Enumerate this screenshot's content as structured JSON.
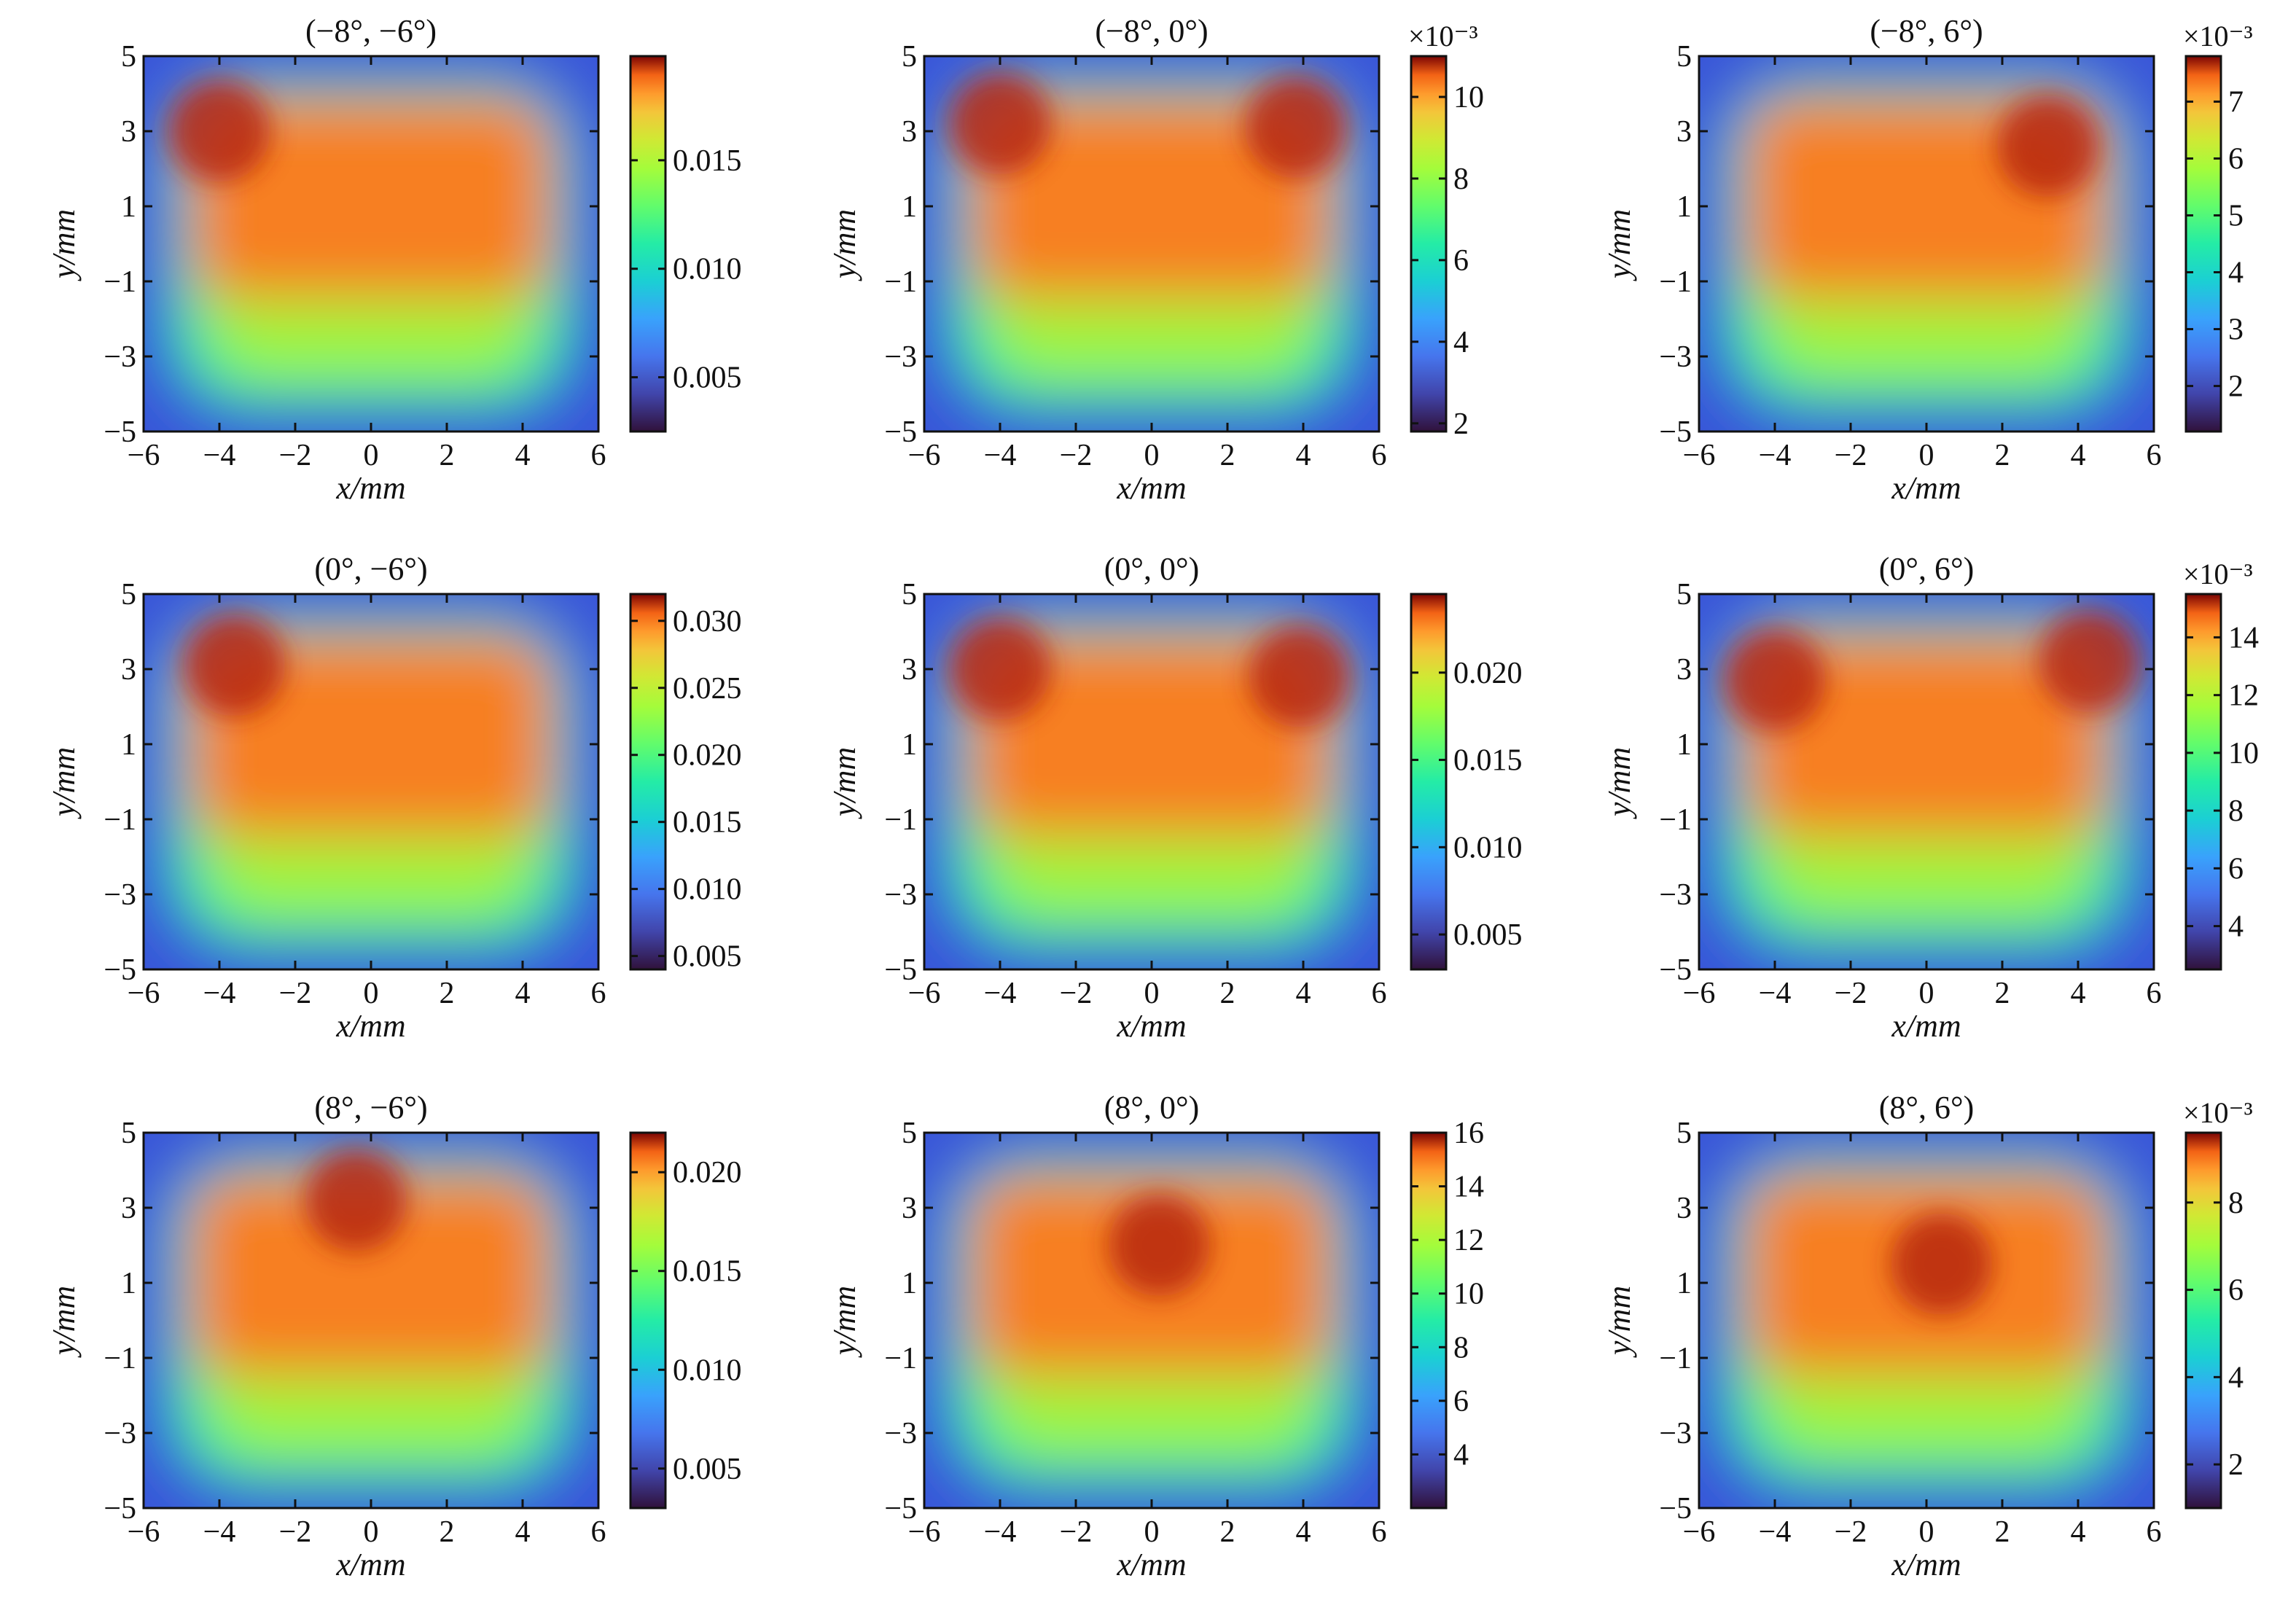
{
  "chart_data": [
    {
      "type": "heatmap",
      "title": "(−8°, −6°)",
      "xlabel": "x/mm",
      "ylabel": "y/mm",
      "xlim": [
        -6,
        6
      ],
      "ylim": [
        -5,
        5
      ],
      "xticks": [
        "−6",
        "−4",
        "−2",
        "0",
        "2",
        "4",
        "6"
      ],
      "yticks": [
        "5",
        "3",
        "1",
        "−1",
        "−3",
        "−5"
      ],
      "colorbar": {
        "min": 0.0025,
        "max": 0.0198,
        "ticks": [
          {
            "value": 0.005,
            "label": "0.005"
          },
          {
            "value": 0.01,
            "label": "0.010"
          },
          {
            "value": 0.015,
            "label": "0.015"
          }
        ],
        "exponent": ""
      },
      "peaks": [
        {
          "x": -4,
          "y": 3,
          "value": 0.0198
        }
      ]
    },
    {
      "type": "heatmap",
      "title": "(−8°, 0°)",
      "xlabel": "x/mm",
      "ylabel": "y/mm",
      "xlim": [
        -6,
        6
      ],
      "ylim": [
        -5,
        5
      ],
      "xticks": [
        "−6",
        "−4",
        "−2",
        "0",
        "2",
        "4",
        "6"
      ],
      "yticks": [
        "5",
        "3",
        "1",
        "−1",
        "−3",
        "−5"
      ],
      "colorbar": {
        "min": 1.8,
        "max": 11,
        "ticks": [
          {
            "value": 2,
            "label": "2"
          },
          {
            "value": 4,
            "label": "4"
          },
          {
            "value": 6,
            "label": "6"
          },
          {
            "value": 8,
            "label": "8"
          },
          {
            "value": 10,
            "label": "10"
          }
        ],
        "exponent": "×10⁻³"
      },
      "peaks": [
        {
          "x": -4,
          "y": 3.2,
          "value": 11
        },
        {
          "x": 3.8,
          "y": 3.1,
          "value": 11
        }
      ]
    },
    {
      "type": "heatmap",
      "title": "(−8°, 6°)",
      "xlabel": "x/mm",
      "ylabel": "y/mm",
      "xlim": [
        -6,
        6
      ],
      "ylim": [
        -5,
        5
      ],
      "xticks": [
        "−6",
        "−4",
        "−2",
        "0",
        "2",
        "4",
        "6"
      ],
      "yticks": [
        "5",
        "3",
        "1",
        "−1",
        "−3",
        "−5"
      ],
      "colorbar": {
        "min": 1.2,
        "max": 7.8,
        "ticks": [
          {
            "value": 2,
            "label": "2"
          },
          {
            "value": 3,
            "label": "3"
          },
          {
            "value": 4,
            "label": "4"
          },
          {
            "value": 5,
            "label": "5"
          },
          {
            "value": 6,
            "label": "6"
          },
          {
            "value": 7,
            "label": "7"
          }
        ],
        "exponent": "×10⁻³"
      },
      "peaks": [
        {
          "x": 3.2,
          "y": 2.6,
          "value": 7.8
        }
      ]
    },
    {
      "type": "heatmap",
      "title": "(0°, −6°)",
      "xlabel": "x/mm",
      "ylabel": "y/mm",
      "xlim": [
        -6,
        6
      ],
      "ylim": [
        -5,
        5
      ],
      "xticks": [
        "−6",
        "−4",
        "−2",
        "0",
        "2",
        "4",
        "6"
      ],
      "yticks": [
        "5",
        "3",
        "1",
        "−1",
        "−3",
        "−5"
      ],
      "colorbar": {
        "min": 0.004,
        "max": 0.032,
        "ticks": [
          {
            "value": 0.005,
            "label": "0.005"
          },
          {
            "value": 0.01,
            "label": "0.010"
          },
          {
            "value": 0.015,
            "label": "0.015"
          },
          {
            "value": 0.02,
            "label": "0.020"
          },
          {
            "value": 0.025,
            "label": "0.025"
          },
          {
            "value": 0.03,
            "label": "0.030"
          }
        ],
        "exponent": ""
      },
      "peaks": [
        {
          "x": -3.6,
          "y": 3.1,
          "value": 0.032
        }
      ]
    },
    {
      "type": "heatmap",
      "title": "(0°, 0°)",
      "xlabel": "x/mm",
      "ylabel": "y/mm",
      "xlim": [
        -6,
        6
      ],
      "ylim": [
        -5,
        5
      ],
      "xticks": [
        "−6",
        "−4",
        "−2",
        "0",
        "2",
        "4",
        "6"
      ],
      "yticks": [
        "5",
        "3",
        "1",
        "−1",
        "−3",
        "−5"
      ],
      "colorbar": {
        "min": 0.003,
        "max": 0.0245,
        "ticks": [
          {
            "value": 0.005,
            "label": "0.005"
          },
          {
            "value": 0.01,
            "label": "0.010"
          },
          {
            "value": 0.015,
            "label": "0.015"
          },
          {
            "value": 0.02,
            "label": "0.020"
          }
        ],
        "exponent": ""
      },
      "peaks": [
        {
          "x": -4,
          "y": 3,
          "value": 0.0245
        },
        {
          "x": 3.9,
          "y": 2.8,
          "value": 0.0235
        }
      ]
    },
    {
      "type": "heatmap",
      "title": "(0°, 6°)",
      "xlabel": "x/mm",
      "ylabel": "y/mm",
      "xlim": [
        -6,
        6
      ],
      "ylim": [
        -5,
        5
      ],
      "xticks": [
        "−6",
        "−4",
        "−2",
        "0",
        "2",
        "4",
        "6"
      ],
      "yticks": [
        "5",
        "3",
        "1",
        "−1",
        "−3",
        "−5"
      ],
      "colorbar": {
        "min": 2.5,
        "max": 15.5,
        "ticks": [
          {
            "value": 4,
            "label": "4"
          },
          {
            "value": 6,
            "label": "6"
          },
          {
            "value": 8,
            "label": "8"
          },
          {
            "value": 10,
            "label": "10"
          },
          {
            "value": 12,
            "label": "12"
          },
          {
            "value": 14,
            "label": "14"
          }
        ],
        "exponent": "×10⁻³"
      },
      "peaks": [
        {
          "x": 4.3,
          "y": 3.2,
          "value": 15.5
        },
        {
          "x": -4,
          "y": 2.7,
          "value": 15
        }
      ]
    },
    {
      "type": "heatmap",
      "title": "(8°, −6°)",
      "xlabel": "x/mm",
      "ylabel": "y/mm",
      "xlim": [
        -6,
        6
      ],
      "ylim": [
        -5,
        5
      ],
      "xticks": [
        "−6",
        "−4",
        "−2",
        "0",
        "2",
        "4",
        "6"
      ],
      "yticks": [
        "5",
        "3",
        "1",
        "−1",
        "−3",
        "−5"
      ],
      "colorbar": {
        "min": 0.003,
        "max": 0.022,
        "ticks": [
          {
            "value": 0.005,
            "label": "0.005"
          },
          {
            "value": 0.01,
            "label": "0.010"
          },
          {
            "value": 0.015,
            "label": "0.015"
          },
          {
            "value": 0.02,
            "label": "0.020"
          }
        ],
        "exponent": ""
      },
      "peaks": [
        {
          "x": -0.4,
          "y": 3.2,
          "value": 0.022
        }
      ]
    },
    {
      "type": "heatmap",
      "title": "(8°, 0°)",
      "xlabel": "x/mm",
      "ylabel": "y/mm",
      "xlim": [
        -6,
        6
      ],
      "ylim": [
        -5,
        5
      ],
      "xticks": [
        "−6",
        "−4",
        "−2",
        "0",
        "2",
        "4",
        "6"
      ],
      "yticks": [
        "5",
        "3",
        "1",
        "−1",
        "−3",
        "−5"
      ],
      "colorbar": {
        "min": 2,
        "max": 16,
        "ticks": [
          {
            "value": 4,
            "label": "4"
          },
          {
            "value": 6,
            "label": "6"
          },
          {
            "value": 8,
            "label": "8"
          },
          {
            "value": 10,
            "label": "10"
          },
          {
            "value": 12,
            "label": "12"
          },
          {
            "value": 14,
            "label": "14"
          },
          {
            "value": 16,
            "label": "16"
          }
        ],
        "exponent": ""
      },
      "peaks": [
        {
          "x": 0.2,
          "y": 2,
          "value": 16
        }
      ]
    },
    {
      "type": "heatmap",
      "title": "(8°, 6°)",
      "xlabel": "x/mm",
      "ylabel": "y/mm",
      "xlim": [
        -6,
        6
      ],
      "ylim": [
        -5,
        5
      ],
      "xticks": [
        "−6",
        "−4",
        "−2",
        "0",
        "2",
        "4",
        "6"
      ],
      "yticks": [
        "5",
        "3",
        "1",
        "−1",
        "−3",
        "−5"
      ],
      "colorbar": {
        "min": 1,
        "max": 9.6,
        "ticks": [
          {
            "value": 2,
            "label": "2"
          },
          {
            "value": 4,
            "label": "4"
          },
          {
            "value": 6,
            "label": "6"
          },
          {
            "value": 8,
            "label": "8"
          }
        ],
        "exponent": "×10⁻³"
      },
      "peaks": [
        {
          "x": 0.4,
          "y": 1.5,
          "value": 9.6
        }
      ]
    }
  ]
}
